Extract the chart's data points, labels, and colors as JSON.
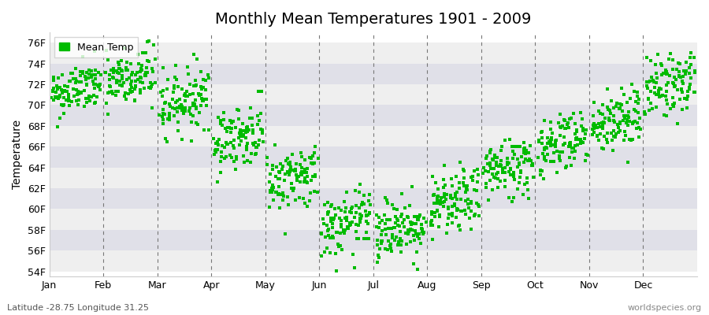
{
  "title": "Monthly Mean Temperatures 1901 - 2009",
  "ylabel": "Temperature",
  "xlabel_months": [
    "Jan",
    "Feb",
    "Mar",
    "Apr",
    "May",
    "Jun",
    "Jul",
    "Aug",
    "Sep",
    "Oct",
    "Nov",
    "Dec"
  ],
  "ytick_labels": [
    "54F",
    "56F",
    "58F",
    "60F",
    "62F",
    "64F",
    "66F",
    "68F",
    "70F",
    "72F",
    "74F",
    "76F"
  ],
  "ytick_values": [
    54,
    56,
    58,
    60,
    62,
    64,
    66,
    68,
    70,
    72,
    74,
    76
  ],
  "ylim": [
    53.5,
    77
  ],
  "dot_color": "#00bb00",
  "legend_label": "Mean Temp",
  "footnote_left": "Latitude -28.75 Longitude 31.25",
  "footnote_right": "worldspecies.org",
  "bg_color": "#ffffff",
  "band_color_light": "#efefef",
  "band_color_dark": "#e0e0e8",
  "title_fontsize": 14,
  "axis_fontsize": 9,
  "footnote_fontsize": 8,
  "n_years": 109,
  "month_mean_temps": [
    71.5,
    72.5,
    70.5,
    67.0,
    63.0,
    58.5,
    58.2,
    60.5,
    64.0,
    66.5,
    68.5,
    72.0
  ],
  "month_std_temps": [
    1.2,
    1.5,
    1.5,
    1.5,
    1.5,
    1.5,
    1.5,
    1.5,
    1.5,
    1.5,
    1.5,
    1.5
  ],
  "random_seed": 42
}
